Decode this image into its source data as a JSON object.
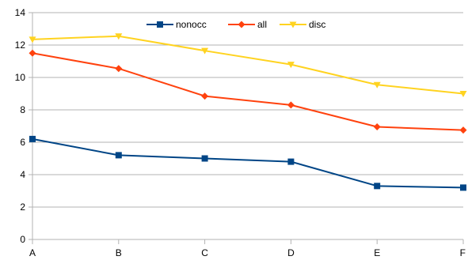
{
  "chart_data": {
    "type": "line",
    "title": "",
    "xlabel": "",
    "ylabel": "",
    "categories": [
      "A",
      "B",
      "C",
      "D",
      "E",
      "F"
    ],
    "ylim": [
      0,
      14
    ],
    "yticks": [
      0,
      2,
      4,
      6,
      8,
      10,
      12,
      14
    ],
    "grid": "horizontal",
    "legend_position": "top-center",
    "series": [
      {
        "name": "nonocc",
        "color": "#004586",
        "marker": "square",
        "values": [
          6.2,
          5.2,
          5.0,
          4.8,
          3.3,
          3.2
        ]
      },
      {
        "name": "all",
        "color": "#ff420e",
        "marker": "diamond",
        "values": [
          11.5,
          10.55,
          8.85,
          8.3,
          6.95,
          6.75
        ]
      },
      {
        "name": "disc",
        "color": "#ffd320",
        "marker": "triangle-down",
        "values": [
          12.35,
          12.55,
          11.65,
          10.8,
          9.55,
          9.0
        ]
      }
    ]
  }
}
